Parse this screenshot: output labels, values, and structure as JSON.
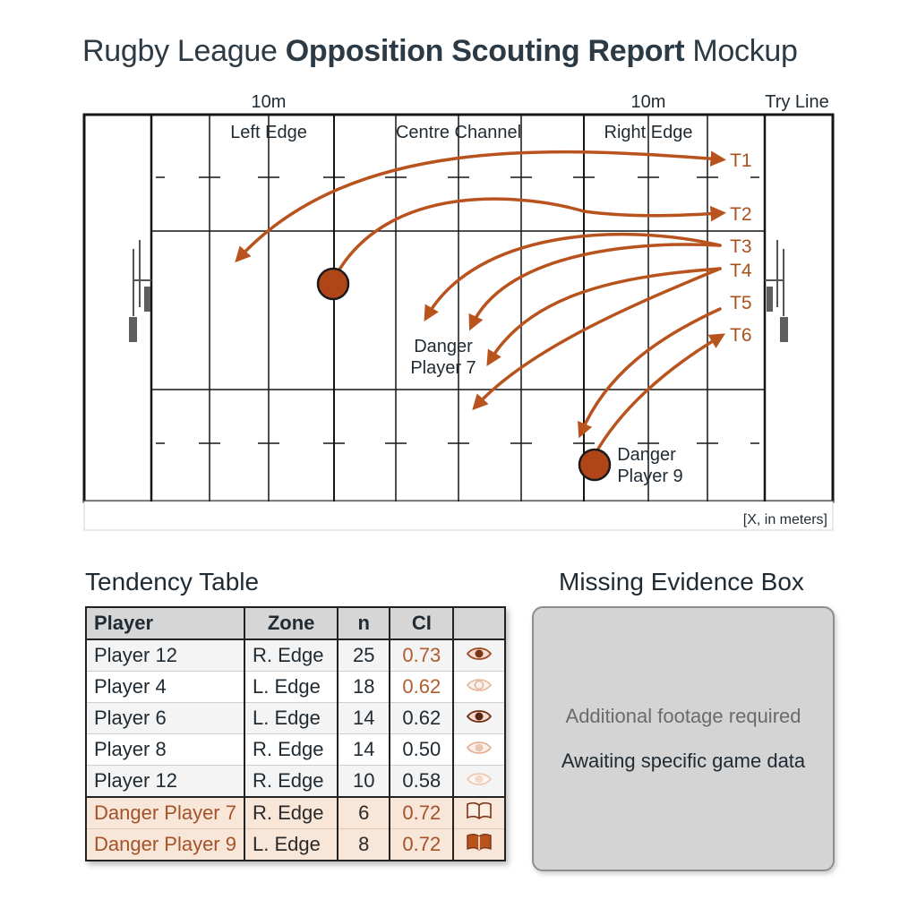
{
  "title": {
    "part1": "Rugby League ",
    "part2": "Opposition  Scouting Report",
    "part3": " Mockup"
  },
  "field": {
    "top_labels": {
      "left_10m": "10m",
      "right_10m": "10m",
      "try_line": "Try Line"
    },
    "zones": [
      "Left Edge",
      "Centre Channel",
      "Right Edge"
    ],
    "targets": [
      "T1",
      "T2",
      "T3",
      "T4",
      "T5",
      "T6"
    ],
    "players": [
      {
        "name": "Danger Player 7"
      },
      {
        "name": "Danger Player 9"
      }
    ],
    "danger7": {
      "line1": "Danger",
      "line2": "Player 7"
    },
    "danger9": {
      "line1": "Danger",
      "line2": "Player 9"
    },
    "axis_note": "[X, in meters]",
    "colors": {
      "arrow": "#b8531e",
      "marker": "#b04618",
      "label": "#a8521f"
    }
  },
  "tendency": {
    "title": "Tendency Table",
    "headers": [
      "Player",
      "Zone",
      "n",
      "CI",
      ""
    ],
    "rows": [
      {
        "player": "Player 12",
        "zone": "R. Edge",
        "n": "25",
        "ci": "0.73",
        "icon": "eye-icon"
      },
      {
        "player": "Player 4",
        "zone": "L. Edge",
        "n": "18",
        "ci": "0.62",
        "icon": "eye-icon"
      },
      {
        "player": "Player 6",
        "zone": "L. Edge",
        "n": "14",
        "ci": "0.62",
        "icon": "eye-icon"
      },
      {
        "player": "Player 8",
        "zone": "R. Edge",
        "n": "14",
        "ci": "0.50",
        "icon": "eye-icon"
      },
      {
        "player": "Player 12",
        "zone": "R. Edge",
        "n": "10",
        "ci": "0.58",
        "icon": "eye-icon"
      },
      {
        "player": "Danger Player 7",
        "zone": "R. Edge",
        "n": "6",
        "ci": "0.72",
        "icon": "book-open-icon"
      },
      {
        "player": "Danger Player 9",
        "zone": "L. Edge",
        "n": "8",
        "ci": "0.72",
        "icon": "book-filled-icon"
      }
    ]
  },
  "evidence": {
    "title": "Missing Evidence Box",
    "line1": "Additional footage required",
    "line2": "Awaiting specific game data"
  }
}
